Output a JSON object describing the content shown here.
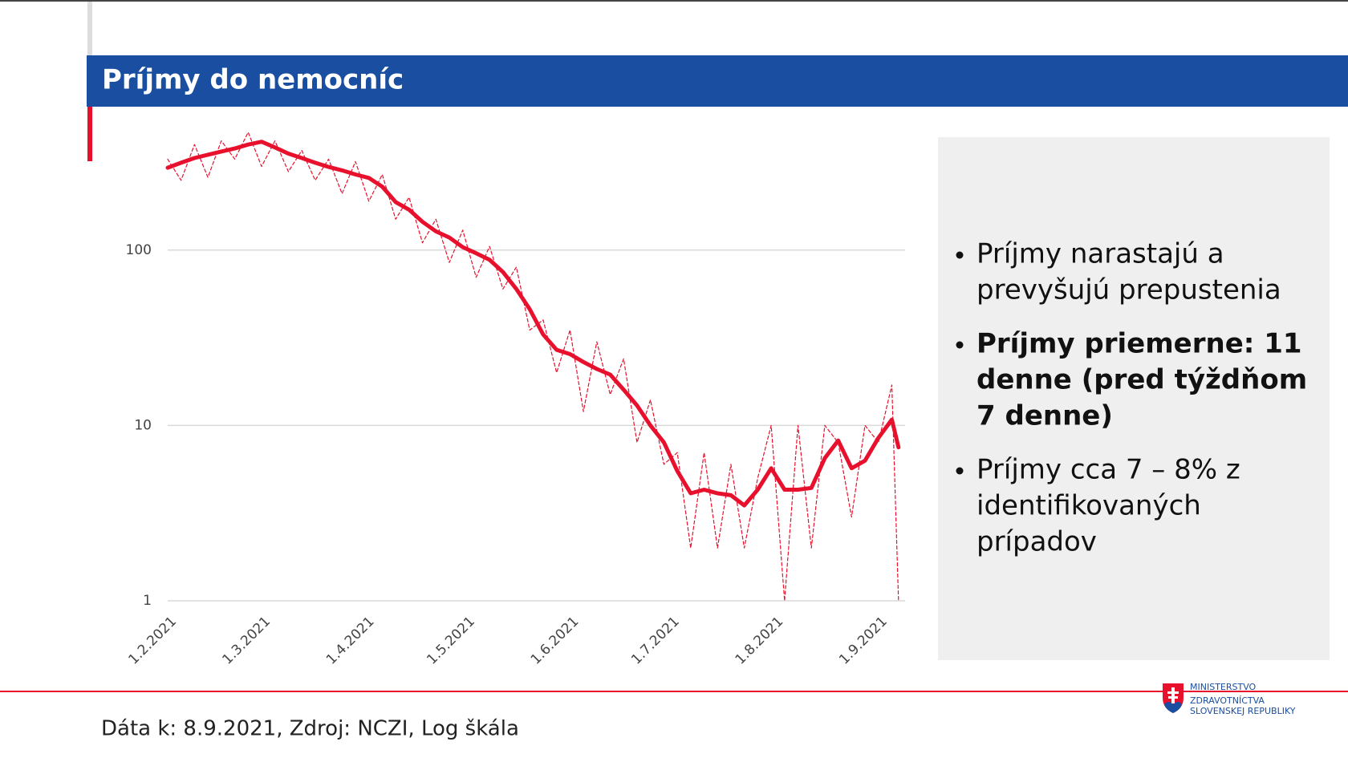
{
  "slide": {
    "title": "Príjmy do nemocníc",
    "bullets": [
      {
        "lines": [
          "Príjmy narastajú a",
          "prevyšujú prepustenia"
        ],
        "bold": false
      },
      {
        "lines": [
          "Príjmy priemerne: 11",
          "denne (pred týždňom",
          "7 denne)"
        ],
        "bold": true
      },
      {
        "lines": [
          "Príjmy cca 7 – 8% z",
          "identifikovaných",
          "prípadov"
        ],
        "bold": false
      }
    ],
    "footer": "Dáta k: 8.9.2021, Zdroj: NCZI, Log škála",
    "logo": [
      "MINISTERSTVO",
      "ZDRAVOTNÍCTVA",
      "SLOVENSKEJ REPUBLIKY"
    ]
  },
  "chart_data": {
    "type": "line",
    "log_scale": true,
    "grid": true,
    "ylim": [
      1,
      500
    ],
    "yticks": [
      1,
      10,
      100
    ],
    "xlim": [
      "1.2.2021",
      "8.9.2021"
    ],
    "xticks": [
      "1.2.2021",
      "1.3.2021",
      "1.4.2021",
      "1.5.2021",
      "1.6.2021",
      "1.7.2021",
      "1.8.2021",
      "1.9.2021"
    ],
    "x": [
      "1.2.2021",
      "5.2.2021",
      "9.2.2021",
      "13.2.2021",
      "17.2.2021",
      "21.2.2021",
      "25.2.2021",
      "1.3.2021",
      "5.3.2021",
      "9.3.2021",
      "13.3.2021",
      "17.3.2021",
      "21.3.2021",
      "25.3.2021",
      "29.3.2021",
      "2.4.2021",
      "6.4.2021",
      "10.4.2021",
      "14.4.2021",
      "18.4.2021",
      "22.4.2021",
      "26.4.2021",
      "30.4.2021",
      "4.5.2021",
      "8.5.2021",
      "12.5.2021",
      "16.5.2021",
      "20.5.2021",
      "24.5.2021",
      "28.5.2021",
      "1.6.2021",
      "5.6.2021",
      "9.6.2021",
      "13.6.2021",
      "17.6.2021",
      "21.6.2021",
      "25.6.2021",
      "29.6.2021",
      "3.7.2021",
      "7.7.2021",
      "11.7.2021",
      "15.7.2021",
      "19.7.2021",
      "23.7.2021",
      "27.7.2021",
      "31.7.2021",
      "4.8.2021",
      "8.8.2021",
      "12.8.2021",
      "16.8.2021",
      "20.8.2021",
      "24.8.2021",
      "28.8.2021",
      "1.9.2021",
      "5.9.2021",
      "7.9.2021"
    ],
    "series": [
      {
        "color": "#e8112d",
        "style": "dashed",
        "width": 1.2,
        "values": [
          330,
          250,
          400,
          260,
          420,
          330,
          470,
          300,
          420,
          280,
          370,
          250,
          330,
          210,
          320,
          190,
          270,
          150,
          200,
          110,
          150,
          85,
          130,
          70,
          105,
          60,
          80,
          35,
          40,
          20,
          35,
          12,
          30,
          15,
          24,
          8,
          14,
          6,
          7,
          2,
          7,
          2,
          6,
          2,
          5,
          10,
          1,
          10,
          2,
          10,
          8,
          3,
          10,
          8,
          17,
          1
        ]
      },
      {
        "color": "#e8112d",
        "style": "solid",
        "width": 5,
        "values": [
          295,
          315,
          335,
          350,
          365,
          380,
          400,
          415,
          385,
          355,
          335,
          315,
          298,
          285,
          270,
          258,
          230,
          188,
          170,
          145,
          128,
          118,
          104,
          96,
          88,
          75,
          60,
          46,
          33,
          27,
          25.5,
          23,
          21,
          19.5,
          16,
          13,
          10,
          8,
          5.5,
          4.1,
          4.3,
          4.1,
          4.0,
          3.5,
          4.3,
          5.7,
          4.3,
          4.3,
          4.4,
          6.5,
          8.2,
          5.7,
          6.3,
          8.5,
          10.8,
          7.5
        ]
      }
    ]
  }
}
